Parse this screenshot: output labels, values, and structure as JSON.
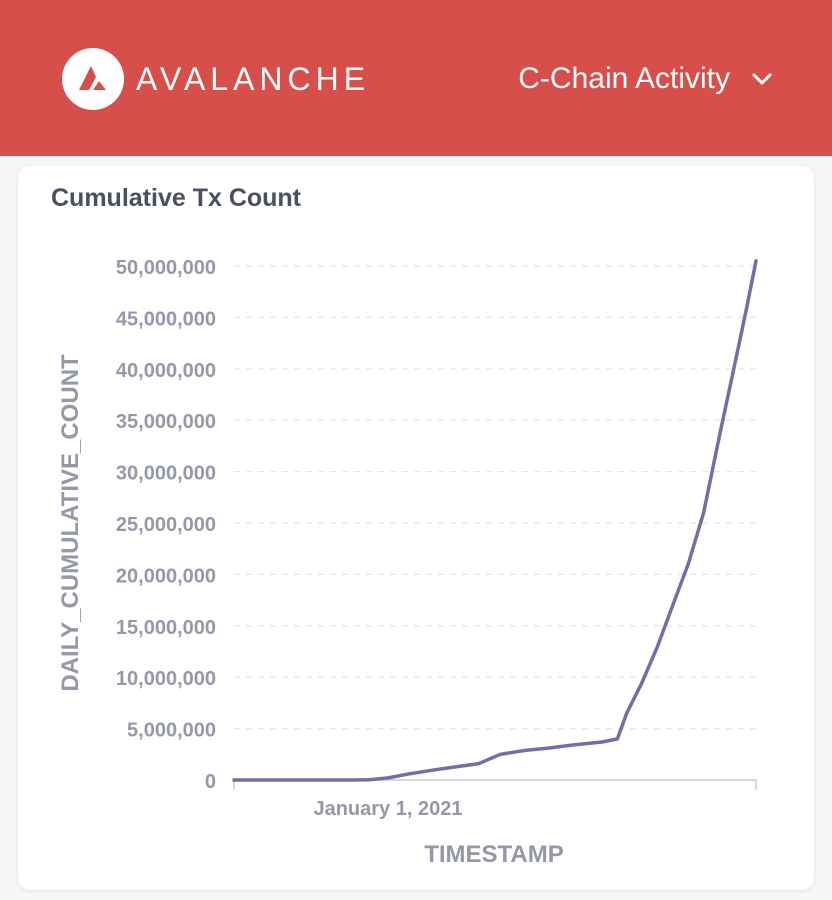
{
  "header": {
    "brand": "AVALANCHE",
    "logo_icon": "avalanche-triangle-icon",
    "nav_label": "C-Chain Activity",
    "nav_icon": "chevron-down-icon",
    "background": "#d64f4a"
  },
  "card": {
    "title": "Cumulative Tx Count"
  },
  "chart_data": {
    "type": "line",
    "title": "Cumulative Tx Count",
    "xlabel": "TIMESTAMP",
    "ylabel": "DAILY_CUMULATIVE_COUNT",
    "ylim": [
      0,
      50000000
    ],
    "yticks": [
      0,
      5000000,
      10000000,
      15000000,
      20000000,
      25000000,
      30000000,
      35000000,
      40000000,
      45000000,
      50000000
    ],
    "ytick_labels": [
      "0",
      "5,000,000",
      "10,000,000",
      "15,000,000",
      "20,000,000",
      "25,000,000",
      "30,000,000",
      "35,000,000",
      "40,000,000",
      "45,000,000",
      "50,000,000"
    ],
    "xlim": [
      "2020-09-23",
      "2021-08-28"
    ],
    "xticks": [
      "2021-01-01"
    ],
    "xtick_labels": [
      "January 1, 2021"
    ],
    "grid": true,
    "line_color": "#6f70a8",
    "series": [
      {
        "x": [
          "2020-09-23",
          "2020-10-15",
          "2020-11-10",
          "2020-12-10",
          "2020-12-20",
          "2021-01-01",
          "2021-01-15",
          "2021-02-01",
          "2021-02-15",
          "2021-03-01",
          "2021-03-15",
          "2021-04-01",
          "2021-04-15",
          "2021-05-01",
          "2021-05-20",
          "2021-05-30",
          "2021-06-05",
          "2021-06-15",
          "2021-06-25",
          "2021-07-05",
          "2021-07-15",
          "2021-07-25",
          "2021-08-05",
          "2021-08-15",
          "2021-08-22",
          "2021-08-28"
        ],
        "values": [
          0,
          0,
          0,
          0,
          20000,
          200000,
          600000,
          1000000,
          1300000,
          1600000,
          2500000,
          2900000,
          3100000,
          3400000,
          3700000,
          4000000,
          6500000,
          9500000,
          13000000,
          17000000,
          21000000,
          26000000,
          34000000,
          41000000,
          46000000,
          50500000
        ]
      }
    ]
  }
}
